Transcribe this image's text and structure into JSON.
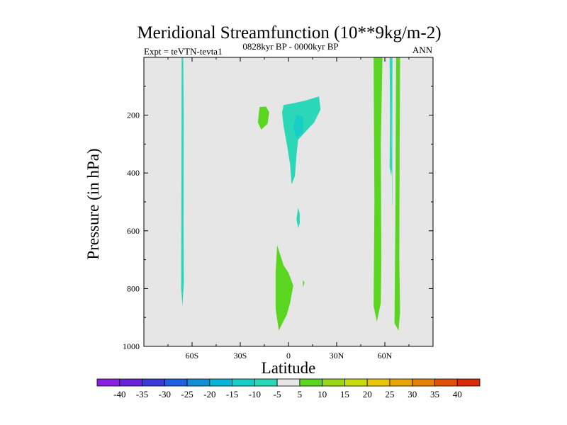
{
  "chart_data": {
    "type": "filled-contour",
    "title": "Meridional Streamfunction (10**9kg/m-2)",
    "subtitle_left": "Expt = teVTN-tevta1",
    "subtitle_center": "0828kyr BP - 0000kyr BP",
    "subtitle_right": "ANN",
    "xlabel": "Latitude",
    "ylabel": "Pressure (in hPa)",
    "xlim": [
      -90,
      90
    ],
    "ylim": [
      0,
      1000
    ],
    "y_inverted": true,
    "x_ticks": [
      {
        "value": -60,
        "label": "60S"
      },
      {
        "value": -30,
        "label": "30S"
      },
      {
        "value": 0,
        "label": "0"
      },
      {
        "value": 30,
        "label": "30N"
      },
      {
        "value": 60,
        "label": "60N"
      }
    ],
    "y_ticks": [
      {
        "value": 200,
        "label": "200"
      },
      {
        "value": 400,
        "label": "400"
      },
      {
        "value": 600,
        "label": "600"
      },
      {
        "value": 800,
        "label": "800"
      },
      {
        "value": 1000,
        "label": "1000"
      }
    ],
    "colorbar": {
      "labels": [
        "-40",
        "-35",
        "-30",
        "-25",
        "-20",
        "-15",
        "-10",
        "-5",
        "5",
        "10",
        "15",
        "20",
        "25",
        "30",
        "35",
        "40"
      ],
      "colors": [
        "#8a1fe0",
        "#6a22d8",
        "#3a3ad6",
        "#1f60e0",
        "#1190d8",
        "#0ab4d6",
        "#18ccc8",
        "#2ad8b8",
        "#e6e6e6",
        "#5ad620",
        "#9cd618",
        "#cada10",
        "#e8c40c",
        "#e8a408",
        "#e48008",
        "#e05006",
        "#d82a04"
      ]
    },
    "background_color": "#e6e6e6",
    "regions": [
      {
        "name": "sh-highlat-negative",
        "level": -10,
        "color": "#2ad8b8",
        "points": [
          [
            -66.5,
            0
          ],
          [
            -65.5,
            0
          ],
          [
            -65.2,
            200
          ],
          [
            -65.3,
            600
          ],
          [
            -65.1,
            780
          ],
          [
            -66,
            860
          ],
          [
            -66.8,
            800
          ],
          [
            -66.6,
            400
          ]
        ]
      },
      {
        "name": "tropical-upper-positive",
        "level": 5,
        "color": "#5ad620",
        "points": [
          [
            -18,
            172
          ],
          [
            -14,
            170
          ],
          [
            -12,
            190
          ],
          [
            -13,
            230
          ],
          [
            -17,
            250
          ],
          [
            -19,
            225
          ]
        ]
      },
      {
        "name": "tropical-upper-negative",
        "level": -10,
        "color": "#2ad8b8",
        "points": [
          [
            -3,
            165
          ],
          [
            2,
            160
          ],
          [
            10,
            150
          ],
          [
            19,
            135
          ],
          [
            20,
            180
          ],
          [
            16,
            225
          ],
          [
            11,
            255
          ],
          [
            6,
            285
          ],
          [
            5,
            340
          ],
          [
            4,
            410
          ],
          [
            2,
            440
          ],
          [
            1,
            370
          ],
          [
            -1,
            300
          ],
          [
            -3,
            240
          ],
          [
            -4,
            190
          ]
        ]
      },
      {
        "name": "tropical-upper-core",
        "level": -15,
        "color": "#18ccc8",
        "points": [
          [
            5,
            200
          ],
          [
            9,
            205
          ],
          [
            9,
            260
          ],
          [
            5,
            280
          ],
          [
            3,
            240
          ]
        ]
      },
      {
        "name": "tropical-mid-negative",
        "level": -10,
        "color": "#2ad8b8",
        "points": [
          [
            6,
            520
          ],
          [
            7,
            540
          ],
          [
            7,
            575
          ],
          [
            6,
            590
          ],
          [
            5,
            560
          ]
        ]
      },
      {
        "name": "tropical-lower-positive",
        "level": 5,
        "color": "#5ad620",
        "points": [
          [
            -7,
            650
          ],
          [
            -3,
            720
          ],
          [
            0,
            745
          ],
          [
            3,
            790
          ],
          [
            1,
            850
          ],
          [
            -1,
            890
          ],
          [
            -6,
            945
          ],
          [
            -8,
            870
          ],
          [
            -8,
            740
          ]
        ]
      },
      {
        "name": "tropical-lower-speck",
        "level": 5,
        "color": "#5ad620",
        "points": [
          [
            9,
            770
          ],
          [
            10,
            780
          ],
          [
            9,
            795
          ]
        ]
      },
      {
        "name": "nh-50n-positive",
        "level": 5,
        "color": "#5ad620",
        "points": [
          [
            53,
            0
          ],
          [
            58.5,
            0
          ],
          [
            57.5,
            300
          ],
          [
            57.8,
            700
          ],
          [
            57.5,
            850
          ],
          [
            55,
            915
          ],
          [
            53,
            860
          ],
          [
            53.5,
            500
          ]
        ]
      },
      {
        "name": "nh-60n-negative",
        "level": -10,
        "color": "#2ad8b8",
        "points": [
          [
            63,
            0
          ],
          [
            64.5,
            0
          ],
          [
            64.3,
            300
          ],
          [
            64.5,
            380
          ],
          [
            64,
            410
          ],
          [
            63,
            380
          ],
          [
            63.2,
            200
          ]
        ]
      },
      {
        "name": "nh-60n-thin-line",
        "level": -10,
        "color": "#2ad8b8",
        "points": [
          [
            64.4,
            0
          ],
          [
            64.7,
            0
          ],
          [
            64.6,
            510
          ],
          [
            64.4,
            510
          ]
        ]
      },
      {
        "name": "nh-65n-positive",
        "level": 5,
        "color": "#5ad620",
        "points": [
          [
            67,
            0
          ],
          [
            69.5,
            0
          ],
          [
            69.2,
            300
          ],
          [
            69,
            700
          ],
          [
            69.5,
            880
          ],
          [
            68.5,
            945
          ],
          [
            66,
            920
          ],
          [
            66.5,
            600
          ],
          [
            66.8,
            250
          ]
        ]
      }
    ]
  }
}
